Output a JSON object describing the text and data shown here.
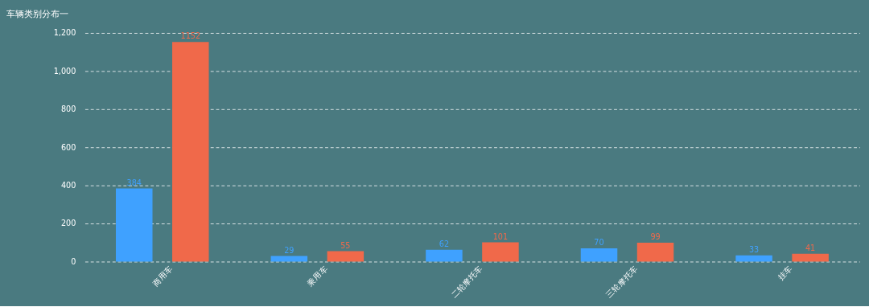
{
  "chart_data": {
    "type": "bar",
    "title": "车辆类别分布一",
    "categories": [
      "商用车",
      "乘用车",
      "二轮摩托车",
      "三轮摩托车",
      "挂车"
    ],
    "series": [
      {
        "color": "#3fa1ff",
        "values": [
          384,
          29,
          62,
          70,
          33
        ]
      },
      {
        "color": "#f0694a",
        "values": [
          1152,
          55,
          101,
          99,
          41
        ]
      }
    ],
    "ylim": [
      0,
      1200
    ],
    "yticks": [
      {
        "value": 0,
        "label": "0"
      },
      {
        "value": 200,
        "label": "200"
      },
      {
        "value": 400,
        "label": "400"
      },
      {
        "value": 600,
        "label": "600"
      },
      {
        "value": 800,
        "label": "800"
      },
      {
        "value": 1000,
        "label": "1,000"
      },
      {
        "value": 1200,
        "label": "1,200"
      }
    ],
    "grid": "y",
    "legend": false,
    "data_labels": true
  }
}
